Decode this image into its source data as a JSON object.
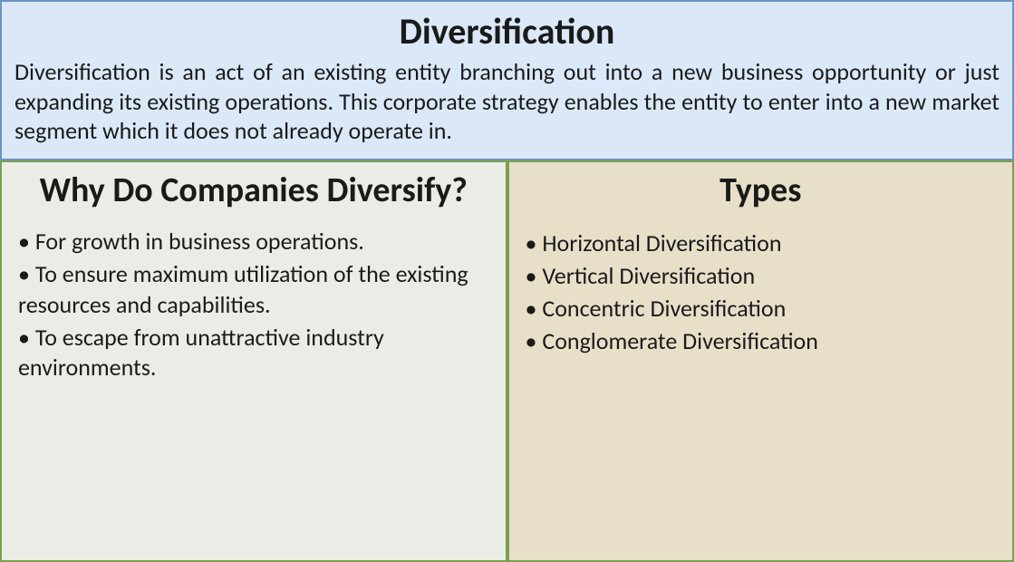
{
  "colors": {
    "top_bg": "#dbe8f7",
    "top_border": "#6b94c5",
    "left_bg": "#ecece6",
    "left_border": "#7aa04c",
    "right_bg": "#e8dfc9",
    "right_border": "#7aa04c",
    "text": "#1a1a1a"
  },
  "top": {
    "title": "Diversification",
    "description": "Diversification is an act of an existing entity branching out into a new business opportunity or just expanding its existing operations. This corporate strategy enables the entity to enter into a new market segment which it does not already operate in."
  },
  "left": {
    "title": "Why Do Companies Diversify?",
    "bullets": [
      "For growth in business operations.",
      "To ensure maximum utilization of the existing resources and capabilities.",
      "To escape from unattractive industry environments."
    ]
  },
  "right": {
    "title": "Types",
    "bullets": [
      "Horizontal Diversification",
      "Vertical Diversification",
      "Concentric Diversification",
      "Conglomerate Diversification"
    ]
  }
}
